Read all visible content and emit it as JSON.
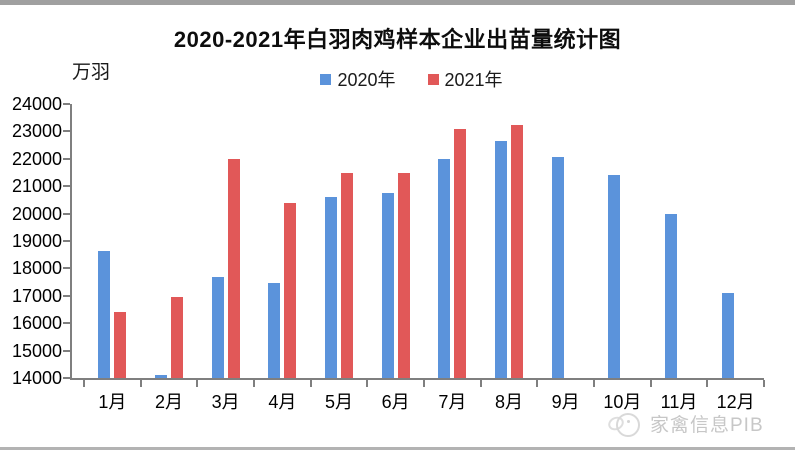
{
  "chart": {
    "title": "2020-2021年白羽肉鸡样本企业出苗量统计图",
    "unit_label": "万羽",
    "watermark_text": "家禽信息PIB"
  },
  "chart_data": {
    "type": "bar",
    "title": "2020-2021年白羽肉鸡样本企业出苗量统计图",
    "xlabel": "",
    "ylabel": "万羽",
    "categories": [
      "1月",
      "2月",
      "3月",
      "4月",
      "5月",
      "6月",
      "7月",
      "8月",
      "9月",
      "10月",
      "11月",
      "12月"
    ],
    "series": [
      {
        "name": "2020年",
        "color": "#5B93DB",
        "values": [
          18650,
          14100,
          17700,
          17450,
          20600,
          20750,
          22000,
          22650,
          22050,
          21400,
          20000,
          17100
        ]
      },
      {
        "name": "2021年",
        "color": "#E15858",
        "values": [
          16400,
          16950,
          22000,
          20400,
          21500,
          21500,
          23100,
          23250,
          null,
          null,
          null,
          null
        ]
      }
    ],
    "ylim": [
      14000,
      24000
    ],
    "ytick_step": 1000,
    "grid": false,
    "legend_position": "top",
    "axis_color": "#7f7f7f"
  }
}
